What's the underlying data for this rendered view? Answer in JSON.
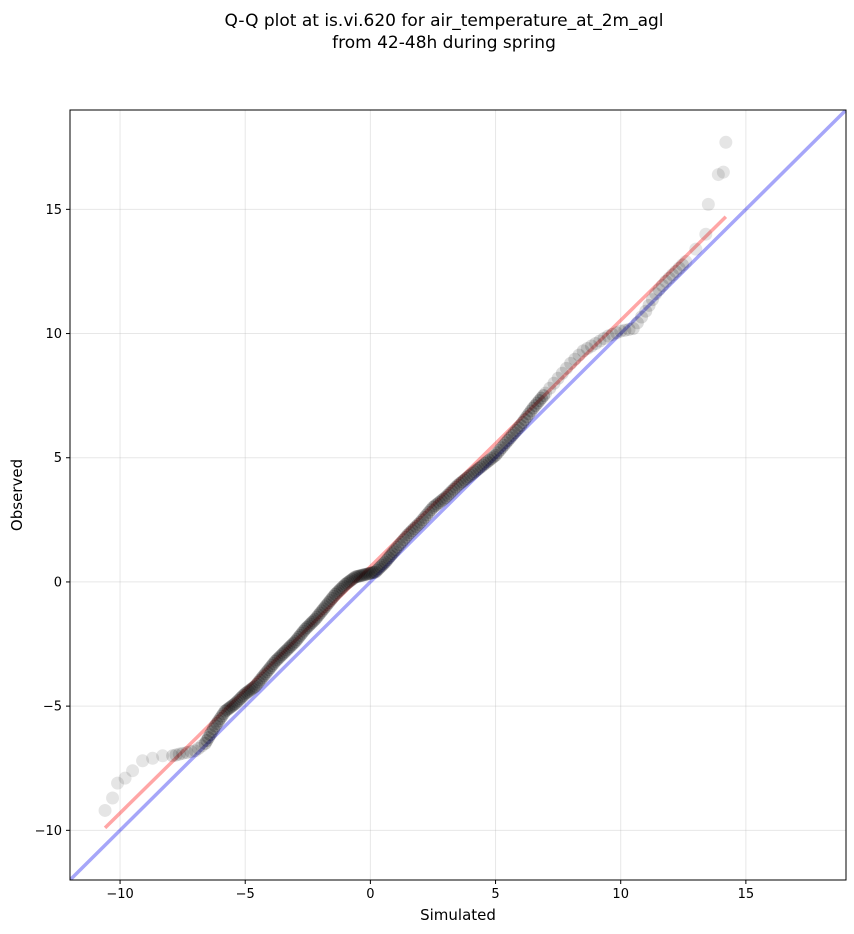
{
  "chart_data": {
    "type": "scatter",
    "title_line1": "Q-Q plot at is.vi.620 for air_temperature_at_2m_agl",
    "title_line2": "from 42-48h during spring",
    "xlabel": "Simulated",
    "ylabel": "Observed",
    "xlim": [
      -12,
      19
    ],
    "ylim": [
      -12,
      19
    ],
    "xticks": [
      -10,
      -5,
      0,
      5,
      10,
      15
    ],
    "yticks": [
      -10,
      -5,
      0,
      5,
      10,
      15
    ],
    "xtick_labels": [
      "−10",
      "−5",
      "0",
      "5",
      "10",
      "15"
    ],
    "ytick_labels": [
      "−10",
      "−5",
      "0",
      "5",
      "10",
      "15"
    ],
    "grid": true,
    "identity_line": {
      "color": "#0000ee",
      "opacity": 0.35
    },
    "fit_line": {
      "color": "#ff0000",
      "opacity": 0.35,
      "x": [
        -10.6,
        14.2
      ],
      "y": [
        -9.9,
        14.7
      ]
    },
    "point_color": "#000000",
    "quantile_curve": {
      "x": [
        -10.6,
        -10.3,
        -10.1,
        -9.8,
        -9.5,
        -9.1,
        -8.7,
        -8.3,
        -7.9,
        -7.5,
        -7.0,
        -6.6,
        -6.2,
        -5.8,
        -5.4,
        -5.0,
        -4.6,
        -4.2,
        -3.8,
        -3.4,
        -3.0,
        -2.6,
        -2.2,
        -1.8,
        -1.4,
        -1.0,
        -0.6,
        -0.2,
        0.2,
        0.6,
        1.0,
        1.5,
        2.0,
        2.5,
        3.0,
        3.5,
        4.0,
        4.5,
        5.0,
        5.5,
        6.0,
        6.5,
        7.0,
        7.5,
        8.0,
        8.5,
        9.0,
        9.5,
        10.0,
        10.5,
        11.0,
        11.4,
        11.8,
        12.2,
        12.6,
        13.0,
        13.4,
        13.5,
        13.9,
        14.1,
        14.2
      ],
      "y": [
        -9.2,
        -8.7,
        -8.1,
        -7.9,
        -7.6,
        -7.2,
        -7.1,
        -7.0,
        -7.0,
        -6.9,
        -6.8,
        -6.5,
        -5.8,
        -5.2,
        -4.9,
        -4.5,
        -4.2,
        -3.7,
        -3.2,
        -2.8,
        -2.4,
        -1.9,
        -1.5,
        -1.0,
        -0.5,
        -0.1,
        0.2,
        0.3,
        0.4,
        0.8,
        1.3,
        1.9,
        2.4,
        3.0,
        3.4,
        3.9,
        4.3,
        4.7,
        5.1,
        5.7,
        6.3,
        7.0,
        7.6,
        8.2,
        8.8,
        9.3,
        9.6,
        9.9,
        10.1,
        10.2,
        10.9,
        11.6,
        12.1,
        12.5,
        12.9,
        13.4,
        14.0,
        15.2,
        16.4,
        16.5,
        17.7
      ]
    }
  }
}
